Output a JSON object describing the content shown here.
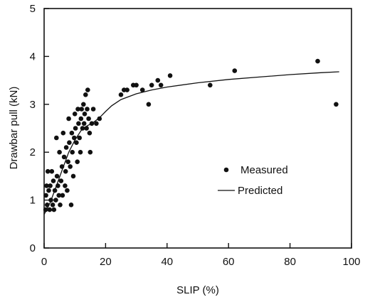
{
  "chart_data": {
    "type": "scatter",
    "xlabel": "SLIP (%)",
    "ylabel": "Drawbar pull (kN)",
    "xlim": [
      0,
      100
    ],
    "ylim": [
      0,
      5
    ],
    "xticks": [
      "0",
      "20",
      "40",
      "60",
      "80",
      "100"
    ],
    "yticks": [
      "0",
      "1",
      "2",
      "3",
      "4",
      "5"
    ],
    "grid": false,
    "legend_position": "center-right",
    "series": [
      {
        "name": "Measured",
        "kind": "points",
        "points": [
          [
            0.5,
            0.8
          ],
          [
            0.6,
            1.1
          ],
          [
            0.8,
            1.3
          ],
          [
            1.0,
            0.9
          ],
          [
            1.2,
            1.6
          ],
          [
            1.5,
            1.2
          ],
          [
            1.8,
            0.8
          ],
          [
            2.0,
            1.3
          ],
          [
            2.2,
            1.0
          ],
          [
            2.5,
            1.6
          ],
          [
            2.8,
            0.9
          ],
          [
            3.0,
            1.4
          ],
          [
            3.2,
            0.8
          ],
          [
            3.5,
            1.2
          ],
          [
            3.8,
            1.0
          ],
          [
            4.0,
            2.3
          ],
          [
            4.2,
            1.5
          ],
          [
            4.5,
            1.3
          ],
          [
            4.8,
            1.1
          ],
          [
            5.0,
            2.0
          ],
          [
            5.2,
            0.9
          ],
          [
            5.5,
            1.4
          ],
          [
            5.8,
            1.7
          ],
          [
            6.0,
            1.1
          ],
          [
            6.2,
            2.4
          ],
          [
            6.5,
            1.9
          ],
          [
            6.8,
            1.3
          ],
          [
            7.0,
            1.6
          ],
          [
            7.2,
            2.1
          ],
          [
            7.5,
            1.2
          ],
          [
            7.8,
            1.8
          ],
          [
            8.0,
            2.7
          ],
          [
            8.2,
            2.2
          ],
          [
            8.5,
            1.7
          ],
          [
            8.8,
            0.9
          ],
          [
            9.0,
            2.4
          ],
          [
            9.2,
            2.0
          ],
          [
            9.5,
            1.5
          ],
          [
            9.8,
            2.3
          ],
          [
            10.0,
            2.8
          ],
          [
            10.2,
            2.5
          ],
          [
            10.5,
            2.2
          ],
          [
            10.8,
            1.8
          ],
          [
            11.0,
            2.9
          ],
          [
            11.2,
            2.6
          ],
          [
            11.5,
            2.3
          ],
          [
            11.8,
            2.0
          ],
          [
            12.0,
            2.7
          ],
          [
            12.2,
            2.9
          ],
          [
            12.5,
            2.5
          ],
          [
            12.8,
            3.0
          ],
          [
            13.0,
            2.6
          ],
          [
            13.2,
            2.8
          ],
          [
            13.5,
            3.2
          ],
          [
            13.8,
            2.5
          ],
          [
            14.0,
            2.9
          ],
          [
            14.2,
            3.3
          ],
          [
            14.5,
            2.7
          ],
          [
            14.8,
            2.4
          ],
          [
            15.0,
            2.0
          ],
          [
            15.5,
            2.6
          ],
          [
            16.0,
            2.9
          ],
          [
            17.0,
            2.6
          ],
          [
            18.0,
            2.7
          ],
          [
            25.0,
            3.2
          ],
          [
            26.0,
            3.3
          ],
          [
            27.0,
            3.3
          ],
          [
            29.0,
            3.4
          ],
          [
            30.0,
            3.4
          ],
          [
            32.0,
            3.3
          ],
          [
            34.0,
            3.0
          ],
          [
            35.0,
            3.4
          ],
          [
            37.0,
            3.5
          ],
          [
            38.0,
            3.4
          ],
          [
            41.0,
            3.6
          ],
          [
            54.0,
            3.4
          ],
          [
            62.0,
            3.7
          ],
          [
            89.0,
            3.9
          ],
          [
            95.0,
            3.0
          ]
        ]
      },
      {
        "name": "Predicted",
        "kind": "line",
        "points": [
          [
            0,
            0.7
          ],
          [
            2,
            0.95
          ],
          [
            4,
            1.3
          ],
          [
            6,
            1.65
          ],
          [
            8,
            2.0
          ],
          [
            10,
            2.25
          ],
          [
            12,
            2.45
          ],
          [
            14,
            2.55
          ],
          [
            16,
            2.62
          ],
          [
            18,
            2.72
          ],
          [
            20,
            2.85
          ],
          [
            22,
            2.97
          ],
          [
            25,
            3.1
          ],
          [
            30,
            3.22
          ],
          [
            35,
            3.3
          ],
          [
            40,
            3.36
          ],
          [
            50,
            3.45
          ],
          [
            60,
            3.52
          ],
          [
            70,
            3.57
          ],
          [
            80,
            3.62
          ],
          [
            90,
            3.66
          ],
          [
            96,
            3.68
          ]
        ]
      }
    ]
  }
}
